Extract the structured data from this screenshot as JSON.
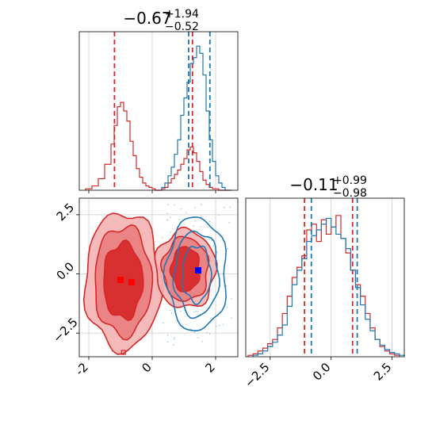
{
  "chart_data": {
    "type": "corner",
    "panels": [
      {
        "id": "hist_x",
        "type": "histogram",
        "title": {
          "value": "−0.67",
          "sup": "+1.94",
          "sub": "−0.52"
        },
        "xlim": [
          -2.3,
          2.7
        ],
        "ylim": [
          0,
          1.1
        ],
        "xticks": [
          -2,
          0,
          2
        ],
        "series": [
          {
            "name": "",
            "color": "#d62728",
            "bin_edges": [
              -2.1,
              -1.9,
              -1.7,
              -1.5,
              -1.3,
              -1.2,
              -1.1,
              -1.0,
              -0.9,
              -0.8,
              -0.7,
              -0.6,
              -0.5,
              -0.4,
              -0.3,
              -0.2,
              -0.1,
              0.0,
              0.1,
              0.2,
              0.3,
              0.4,
              0.5,
              0.6,
              0.7,
              0.8,
              0.9,
              1.0,
              1.1,
              1.2,
              1.3,
              1.4,
              1.5,
              1.6,
              1.7,
              1.8,
              1.9,
              2.0,
              2.1,
              2.3,
              2.5
            ],
            "heights": [
              0.01,
              0.03,
              0.08,
              0.18,
              0.32,
              0.45,
              0.58,
              0.61,
              0.55,
              0.48,
              0.34,
              0.24,
              0.15,
              0.09,
              0.05,
              0.03,
              0.02,
              0.01,
              0.0,
              0.0,
              0.01,
              0.02,
              0.05,
              0.08,
              0.11,
              0.14,
              0.18,
              0.22,
              0.28,
              0.3,
              0.26,
              0.2,
              0.13,
              0.07,
              0.04,
              0.02,
              0.01,
              0.01,
              0.0,
              0.0
            ],
            "quantiles": [
              -1.19,
              1.27
            ]
          },
          {
            "name": "",
            "color": "#1f77b4",
            "bin_edges": [
              0.3,
              0.4,
              0.5,
              0.6,
              0.7,
              0.8,
              0.9,
              1.0,
              1.1,
              1.2,
              1.3,
              1.4,
              1.5,
              1.6,
              1.7,
              1.8,
              1.9,
              2.0,
              2.1,
              2.2,
              2.3
            ],
            "heights": [
              0.02,
              0.05,
              0.1,
              0.16,
              0.25,
              0.35,
              0.52,
              0.64,
              0.75,
              0.88,
              0.92,
              1.0,
              0.95,
              0.8,
              0.55,
              0.35,
              0.2,
              0.1,
              0.05,
              0.02
            ],
            "quantiles": [
              1.15,
              1.82
            ]
          }
        ]
      },
      {
        "id": "hist_y",
        "type": "histogram",
        "title": {
          "value": "−0.11",
          "sup": "+0.99",
          "sub": "−0.98"
        },
        "xlim": [
          -3.5,
          3.0
        ],
        "ylim": [
          0,
          1.1
        ],
        "xticks": [
          -2.5,
          0.0,
          2.5
        ],
        "xtick_labels": [
          "−2.5",
          "0.0",
          "2.5"
        ],
        "series": [
          {
            "name": "",
            "color": "#d62728",
            "bin_edges": [
              -3.4,
              -3.2,
              -3.0,
              -2.8,
              -2.6,
              -2.4,
              -2.2,
              -2.0,
              -1.8,
              -1.6,
              -1.4,
              -1.2,
              -1.0,
              -0.8,
              -0.6,
              -0.4,
              -0.2,
              0.0,
              0.2,
              0.4,
              0.6,
              0.8,
              1.0,
              1.2,
              1.4,
              1.6,
              1.8,
              2.0,
              2.2,
              2.4,
              2.6,
              2.8
            ],
            "heights": [
              0.01,
              0.02,
              0.04,
              0.06,
              0.09,
              0.12,
              0.2,
              0.3,
              0.42,
              0.55,
              0.62,
              0.7,
              0.88,
              0.92,
              0.8,
              0.95,
              0.85,
              0.9,
              0.98,
              0.82,
              0.72,
              0.6,
              0.5,
              0.42,
              0.3,
              0.2,
              0.12,
              0.07,
              0.04,
              0.02,
              0.01
            ],
            "quantiles": [
              -1.09,
              0.88
            ]
          },
          {
            "name": "",
            "color": "#1f77b4",
            "bin_edges": [
              -3.2,
              -3.0,
              -2.8,
              -2.6,
              -2.4,
              -2.2,
              -2.0,
              -1.8,
              -1.6,
              -1.4,
              -1.2,
              -1.0,
              -0.8,
              -0.6,
              -0.4,
              -0.2,
              0.0,
              0.2,
              0.4,
              0.6,
              0.8,
              1.0,
              1.2,
              1.4,
              1.6,
              1.8,
              2.0,
              2.2,
              2.4,
              2.6,
              2.8,
              3.0
            ],
            "heights": [
              0.01,
              0.02,
              0.04,
              0.07,
              0.1,
              0.15,
              0.22,
              0.35,
              0.5,
              0.6,
              0.68,
              0.8,
              0.84,
              0.88,
              0.92,
              0.96,
              0.9,
              0.85,
              0.82,
              0.75,
              0.6,
              0.48,
              0.36,
              0.26,
              0.18,
              0.12,
              0.08,
              0.05,
              0.03,
              0.02,
              0.01
            ],
            "quantiles": [
              -0.81,
              1.07
            ]
          }
        ]
      },
      {
        "id": "contour_xy",
        "type": "contour",
        "xlim": [
          -2.3,
          2.7
        ],
        "ylim": [
          -3.5,
          3.2
        ],
        "xticks": [
          -2,
          0,
          2
        ],
        "yticks": [
          2.5,
          0.0,
          -2.5
        ],
        "ytick_labels": [
          "2.5",
          "0.0",
          "−2.5"
        ],
        "red_blobs": [
          {
            "cx": -0.92,
            "cy": -0.3,
            "rx": [
              1.2,
              0.9,
              0.62
            ],
            "ry": [
              2.9,
              2.3,
              1.6
            ]
          },
          {
            "cx": 1.05,
            "cy": 0.2,
            "rx": [
              0.95,
              0.72,
              0.45
            ],
            "ry": [
              1.65,
              1.35,
              0.95
            ]
          }
        ],
        "blue_blob": {
          "cx": 1.4,
          "cy": 0.0,
          "rx": [
            0.95,
            0.7,
            0.45
          ],
          "ry": [
            2.4,
            1.8,
            1.2
          ]
        },
        "red_markers": [
          [
            -1.0,
            -0.25
          ],
          [
            -0.65,
            -0.35
          ]
        ],
        "blue_marker": [
          1.45,
          0.15
        ]
      }
    ]
  }
}
